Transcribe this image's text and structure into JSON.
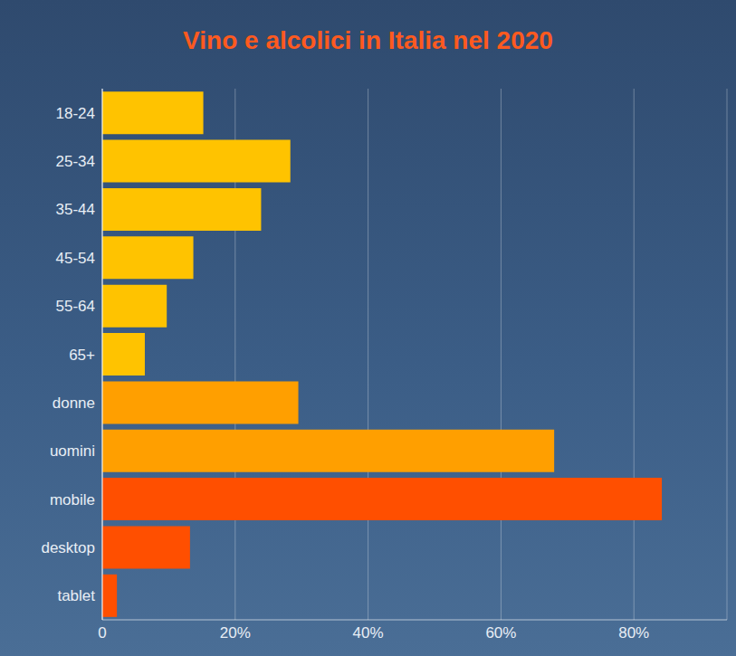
{
  "chart_data": {
    "type": "bar",
    "title": "Vino e alcolici in Italia nel 2020",
    "orientation": "horizontal",
    "categories": [
      "18-24",
      "25-34",
      "35-44",
      "45-54",
      "55-64",
      "65+",
      "donne",
      "uomini",
      "mobile",
      "desktop",
      "tablet"
    ],
    "values": [
      15.2,
      28.3,
      23.9,
      13.7,
      9.7,
      6.4,
      29.5,
      68.0,
      84.2,
      13.2,
      2.2
    ],
    "colors": [
      "#ffc300",
      "#ffc300",
      "#ffc300",
      "#ffc300",
      "#ffc300",
      "#ffc300",
      "#ff9f00",
      "#ff9f00",
      "#ff4f00",
      "#ff4f00",
      "#ff4f00"
    ],
    "xlim": [
      0,
      94
    ],
    "xticks": [
      {
        "value": 0,
        "label": "0"
      },
      {
        "value": 20,
        "label": "20%"
      },
      {
        "value": 40,
        "label": "40%"
      },
      {
        "value": 60,
        "label": "60%"
      },
      {
        "value": 80,
        "label": "80%"
      }
    ],
    "grid": true
  }
}
